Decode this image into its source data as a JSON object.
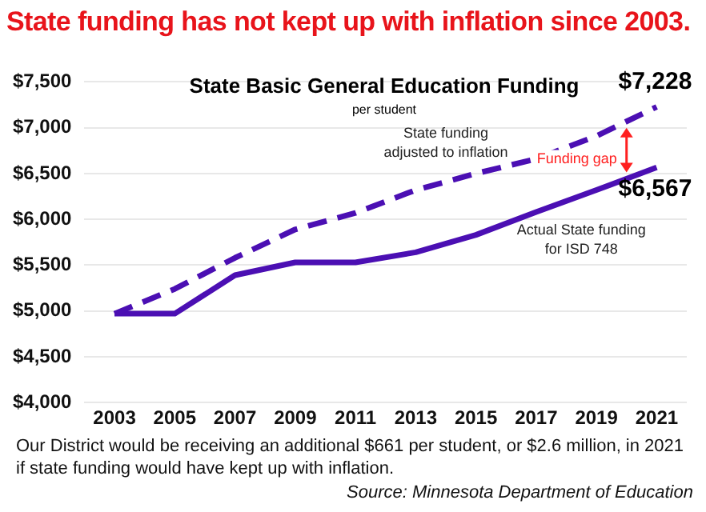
{
  "chart_data": {
    "type": "line",
    "title": "State funding has not kept up with inflation since 2003.",
    "subtitle": "State Basic General Education Funding",
    "x": [
      2003,
      2005,
      2007,
      2009,
      2011,
      2013,
      2015,
      2017,
      2019,
      2021
    ],
    "series": [
      {
        "name": "State funding adjusted to inflation",
        "color": "#4b0fb3",
        "line_style": "dashed",
        "values": [
          4970,
          5240,
          5580,
          5890,
          6070,
          6320,
          6500,
          6660,
          6910,
          7228
        ],
        "value_labels": [
          null,
          null,
          null,
          null,
          null,
          null,
          null,
          null,
          null,
          "$7,228"
        ]
      },
      {
        "name": "Actual State funding for ISD 748",
        "color": "#4b0fb3",
        "line_style": "solid",
        "values": [
          4970,
          4970,
          5390,
          5530,
          5530,
          5640,
          5830,
          6080,
          6320,
          6567
        ],
        "value_labels": [
          null,
          null,
          null,
          null,
          null,
          null,
          null,
          null,
          null,
          "$6,567"
        ]
      }
    ],
    "xlim": [
      2002,
      2022
    ],
    "xticks": [
      2003,
      2005,
      2007,
      2009,
      2011,
      2013,
      2015,
      2017,
      2019,
      2021
    ],
    "ylim": [
      4000,
      7500
    ],
    "yticks": [
      {
        "value": 4000,
        "label": "$4,000"
      },
      {
        "value": 4500,
        "label": "$4,500"
      },
      {
        "value": 5000,
        "label": "$5,000"
      },
      {
        "value": 5500,
        "label": "$5,500"
      },
      {
        "value": 6000,
        "label": "$6,000"
      },
      {
        "value": 6500,
        "label": "$6,500"
      },
      {
        "value": 7000,
        "label": "$7,000"
      },
      {
        "value": 7500,
        "label": "$7,500"
      }
    ],
    "grid": "y",
    "legend": false,
    "marker": "none",
    "annotations": [
      "per student",
      {
        "text": "Funding gap",
        "x": 2020,
        "y": 7070
      },
      "Our District would be receiving an additional $661 per student, or $2.6 million, in 2021 if state funding would have kept up with inflation.",
      "Source: Minnesota Department of Education"
    ]
  }
}
